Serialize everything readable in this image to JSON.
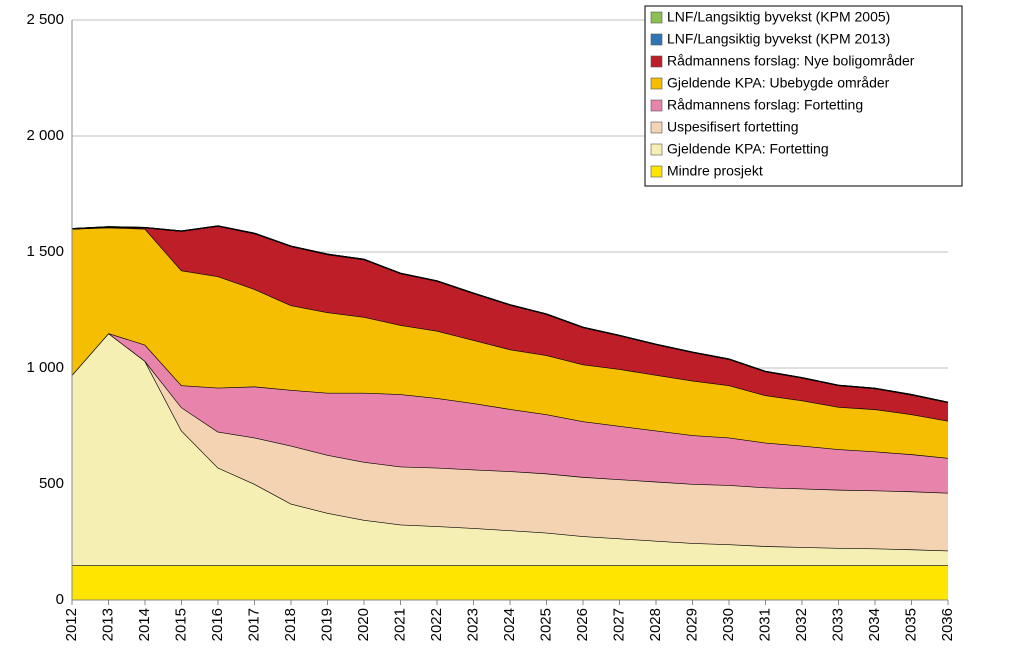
{
  "chart_data": {
    "type": "stacked-area",
    "categories": [
      "2012",
      "2013",
      "2014",
      "2015",
      "2016",
      "2017",
      "2018",
      "2019",
      "2020",
      "2021",
      "2022",
      "2023",
      "2024",
      "2025",
      "2026",
      "2027",
      "2028",
      "2029",
      "2030",
      "2031",
      "2032",
      "2033",
      "2034",
      "2035",
      "2036"
    ],
    "series": [
      {
        "name": "Mindre prosjekt",
        "color": "#ffe600",
        "values": [
          150,
          150,
          150,
          150,
          150,
          150,
          150,
          150,
          150,
          150,
          150,
          150,
          150,
          150,
          150,
          150,
          150,
          150,
          150,
          150,
          150,
          150,
          150,
          150,
          150
        ]
      },
      {
        "name": "Gjeldende KPA: Fortetting",
        "color": "#f6efb3",
        "values": [
          820,
          1000,
          880,
          580,
          420,
          350,
          265,
          225,
          195,
          175,
          168,
          160,
          150,
          140,
          125,
          115,
          105,
          95,
          90,
          82,
          78,
          74,
          72,
          68,
          63
        ]
      },
      {
        "name": "Uspesifisert fortetting",
        "color": "#f4d3b3",
        "values": [
          0,
          0,
          0,
          100,
          155,
          200,
          250,
          250,
          250,
          250,
          252,
          252,
          255,
          255,
          255,
          255,
          255,
          255,
          255,
          253,
          252,
          251,
          250,
          250,
          249
        ]
      },
      {
        "name": "Rådmannens forslag: Fortetting",
        "color": "#e883ab",
        "values": [
          0,
          0,
          70,
          95,
          190,
          220,
          240,
          268,
          298,
          312,
          300,
          286,
          268,
          255,
          240,
          230,
          220,
          210,
          205,
          193,
          185,
          175,
          168,
          160,
          150
        ]
      },
      {
        "name": "Gjeldende KPA: Ubebygde områder",
        "color": "#f5be00",
        "values": [
          630,
          455,
          500,
          495,
          480,
          420,
          365,
          347,
          327,
          298,
          290,
          272,
          257,
          255,
          245,
          245,
          240,
          235,
          225,
          204,
          195,
          182,
          182,
          172,
          160
        ]
      },
      {
        "name": "Rådmannens forslag: Nye boligområder",
        "color": "#be1e28",
        "values": [
          0,
          3,
          5,
          170,
          217,
          240,
          255,
          250,
          248,
          223,
          215,
          202,
          192,
          177,
          160,
          145,
          132,
          123,
          113,
          103,
          98,
          93,
          90,
          85,
          80
        ]
      },
      {
        "name": "LNF/Langsiktig byvekst (KPM 2013)",
        "color": "#2e75b6",
        "values": [
          0,
          0,
          0,
          0,
          0,
          0,
          0,
          0,
          0,
          0,
          0,
          0,
          0,
          0,
          0,
          0,
          0,
          0,
          0,
          0,
          0,
          0,
          0,
          0,
          0
        ]
      },
      {
        "name": "LNF/Langsiktig byvekst (KPM 2005)",
        "color": "#8cc152",
        "values": [
          0,
          0,
          0,
          0,
          0,
          0,
          0,
          0,
          0,
          0,
          0,
          0,
          0,
          0,
          0,
          0,
          0,
          0,
          0,
          0,
          0,
          0,
          0,
          0,
          0
        ]
      }
    ],
    "ylim": [
      0,
      2500
    ],
    "yticks": [
      0,
      500,
      {
        "value": 1000,
        "label": "1 000"
      },
      {
        "value": 1500,
        "label": "1 500"
      },
      {
        "value": 2000,
        "label": "2 000"
      },
      {
        "value": 2500,
        "label": "2 500"
      }
    ],
    "grid": true
  }
}
